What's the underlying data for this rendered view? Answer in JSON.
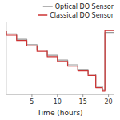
{
  "chart_data": {
    "type": "line",
    "x_label": "Time (hours)",
    "x": [
      0,
      0,
      2.0,
      2.0,
      4.0,
      4.0,
      6.0,
      6.0,
      8.0,
      8.0,
      10.0,
      10.0,
      12.0,
      12.0,
      14.0,
      14.0,
      16.0,
      16.0,
      17.5,
      17.5,
      18.8,
      18.8,
      19.3,
      19.3,
      21.0
    ],
    "series": [
      {
        "name": "Optical DO Sensor",
        "color": "#999999",
        "values": [
          92,
          88,
          88,
          80,
          80,
          72,
          72,
          64,
          64,
          56,
          56,
          49,
          49,
          42,
          42,
          35,
          35,
          28,
          28,
          10,
          10,
          5,
          5,
          90,
          90
        ]
      },
      {
        "name": "Classical DO Sensor",
        "color": "#cc3333",
        "values": [
          92,
          86,
          86,
          78,
          78,
          70,
          70,
          62,
          62,
          54,
          54,
          47,
          47,
          40,
          40,
          33,
          33,
          26,
          26,
          8,
          8,
          3,
          3,
          93,
          93
        ]
      }
    ],
    "xlim": [
      0,
      21
    ],
    "ylim": [
      -2,
      105
    ],
    "xticks": [
      5,
      10,
      15,
      20
    ],
    "tick_labels": "x",
    "legend": "upper right"
  }
}
